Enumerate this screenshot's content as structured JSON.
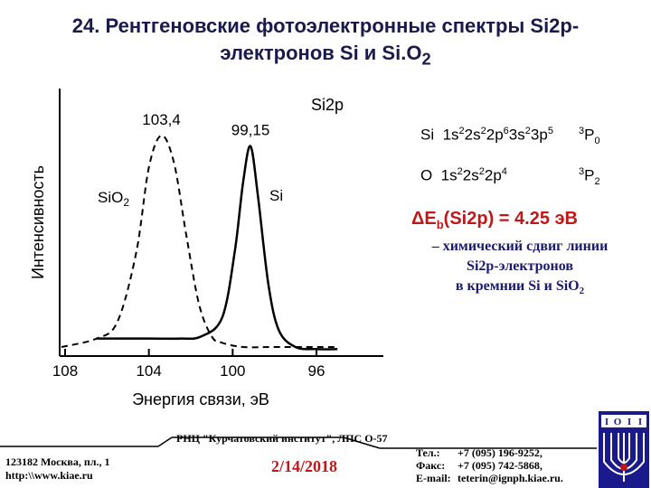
{
  "slide": {
    "title_line1": "24. Рентгеновские фотоэлектронные спектры Si2p-",
    "title_line2_a": "электронов Si и Si.O",
    "title_line2_sub": "2"
  },
  "chart_data": {
    "type": "line",
    "title": "Si2p",
    "xlabel": "Энергия связи, эВ",
    "ylabel": "Интенсивность",
    "xlim": [
      108,
      96
    ],
    "x_reversed": true,
    "xticks": [
      "108",
      "104",
      "100",
      "96"
    ],
    "grid": false,
    "series": [
      {
        "name": "SiO2",
        "style": "dashed",
        "peak_x": 103.4,
        "peak_label": "103,4",
        "x": [
          108.5,
          106.5,
          105.5,
          104.6,
          104.0,
          103.4,
          102.8,
          102.2,
          101.6,
          101.0,
          100.5,
          99.5,
          98.0,
          96.0,
          95.0
        ],
        "y": [
          0.0,
          0.04,
          0.12,
          0.45,
          0.85,
          1.0,
          0.87,
          0.52,
          0.2,
          0.05,
          0.02,
          0.0,
          0.0,
          0.0,
          0.0
        ]
      },
      {
        "name": "Si",
        "style": "solid",
        "peak_x": 99.15,
        "peak_label": "99,15",
        "x": [
          106.5,
          104.0,
          102.5,
          101.5,
          100.5,
          99.9,
          99.5,
          99.15,
          98.8,
          98.3,
          97.8,
          97.0,
          96.0,
          95.0
        ],
        "y": [
          0.04,
          0.04,
          0.04,
          0.05,
          0.14,
          0.45,
          0.78,
          0.95,
          0.72,
          0.3,
          0.08,
          0.0,
          -0.01,
          -0.01
        ]
      }
    ],
    "labels": {
      "sio2": "SiO2",
      "si": "Si"
    }
  },
  "config": {
    "si_prefix": "Si",
    "si_config": "1s22s22p63s23p5",
    "si_term": "3P0",
    "o_prefix": "O",
    "o_config": "1s22s22p4",
    "o_term": "3P2"
  },
  "shift": {
    "delta_text": "ΔE",
    "delta_sub": "b",
    "delta_rest": "(Si2p) = 4.25 эВ",
    "note_line1": "– химический сдвиг линии",
    "note_line2": "Si2p-электронов",
    "note_line3": "в кремнии Si и SiO",
    "note_line3_sub": "2"
  },
  "footer": {
    "center": "РНЦ \"Курчатовский институт\",   ЛПС О-57",
    "address_line1": "123182 Москва, пл., 1",
    "address_line2": "http:\\\\www.kiae.ru",
    "date": "2/14/2018",
    "tel_label": "Тел.:",
    "tel": "+7 (095) 196-9252,",
    "fax_label": "Факс:",
    "fax": "+7 (095) 742-5868,",
    "email_label": "E-mail:",
    "email": "teterin@ignph.kiae.ru."
  },
  "logo": {
    "letters": [
      "I",
      "O",
      "I",
      "I"
    ]
  },
  "colors": {
    "title": "#1a1a4d",
    "accent_red": "#c01818",
    "note": "#1a1a6e",
    "logo_blue": "#1a1a8c"
  }
}
